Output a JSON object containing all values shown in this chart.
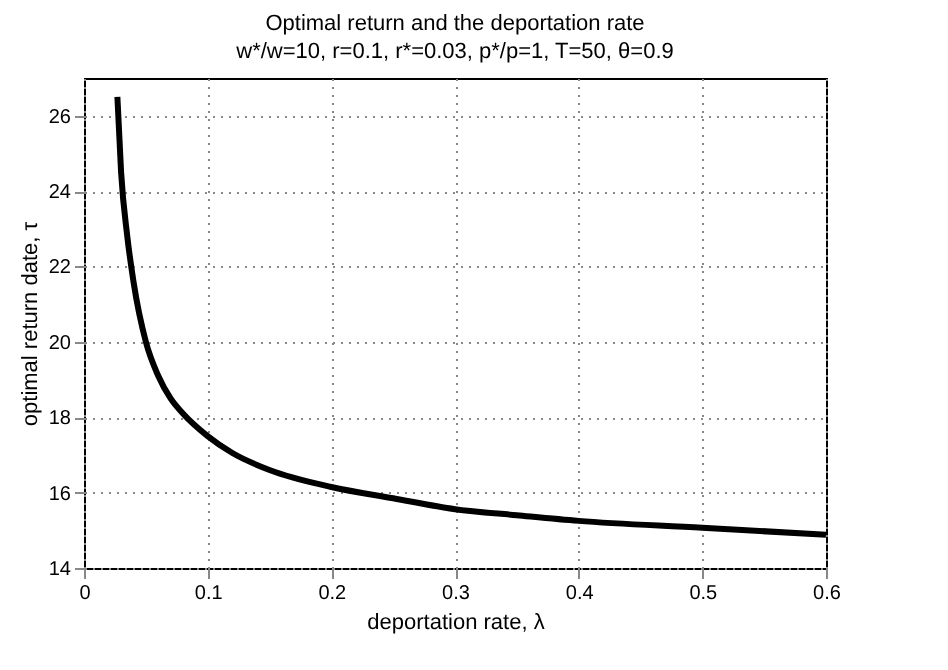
{
  "chart_data": {
    "type": "line",
    "title": "Optimal return and the deportation rate",
    "subtitle": "w*/w=10, r=0.1, r*=0.03, p*/p=1, T=50, θ=0.9",
    "xlabel": "deportation rate, λ",
    "ylabel": "optimal return date, τ",
    "x": [
      0.027,
      0.03,
      0.035,
      0.04,
      0.05,
      0.06,
      0.07,
      0.08,
      0.1,
      0.12,
      0.15,
      0.2,
      0.25,
      0.3,
      0.35,
      0.4,
      0.5,
      0.6
    ],
    "series": [
      {
        "color": "#000000",
        "values": [
          26.5,
          24.5,
          22.8,
          21.6,
          20.0,
          19.1,
          18.5,
          18.1,
          17.5,
          17.05,
          16.6,
          16.15,
          15.85,
          15.56,
          15.4,
          15.25,
          15.07,
          14.88
        ]
      }
    ],
    "xlim": [
      0,
      0.6
    ],
    "xticks": [
      0,
      0.1,
      0.2,
      0.3,
      0.4,
      0.5,
      0.6
    ],
    "ylim": [
      14,
      27
    ],
    "yticks": [
      14,
      16,
      18,
      20,
      22,
      24,
      26
    ],
    "grid": true,
    "line_style": "solid",
    "marker": "none"
  }
}
